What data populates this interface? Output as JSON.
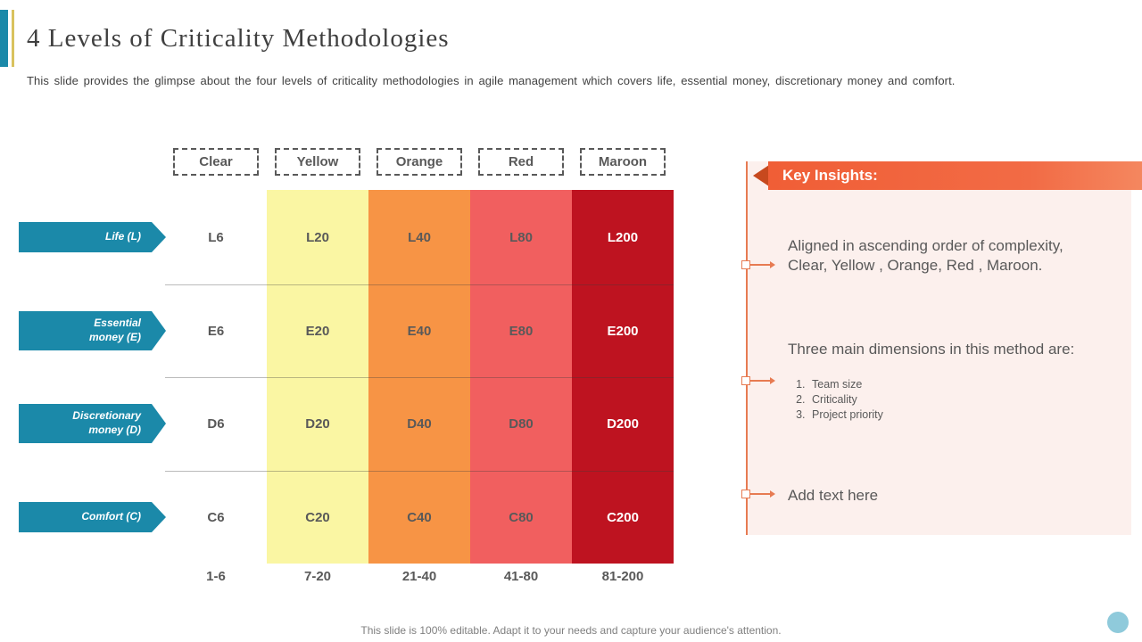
{
  "slide": {
    "title": "4 Levels of Criticality Methodologies",
    "subtitle": "This slide provides the glimpse about the four levels of criticality methodologies in agile management which covers life, essential money, discretionary money and comfort.",
    "footer": "This slide is 100% editable. Adapt it to your needs and capture your audience's attention."
  },
  "matrix": {
    "type": "table",
    "columns": [
      {
        "header": "Clear",
        "range": "1-6",
        "color": "#FFFFFF"
      },
      {
        "header": "Yellow",
        "range": "7-20",
        "color": "#FAF6A3"
      },
      {
        "header": "Orange",
        "range": "21-40",
        "color": "#F79445"
      },
      {
        "header": "Red",
        "range": "41-80",
        "color": "#F15F5F"
      },
      {
        "header": "Maroon",
        "range": "81-200",
        "color": "#BE1320"
      }
    ],
    "rows": [
      {
        "label": "Life (L)",
        "cells": [
          "L6",
          "L20",
          "L40",
          "L80",
          "L200"
        ]
      },
      {
        "label": "Essential money (E)",
        "cells": [
          "E6",
          "E20",
          "E40",
          "E80",
          "E200"
        ]
      },
      {
        "label": "Discretionary money (D)",
        "cells": [
          "D6",
          "D20",
          "D40",
          "D80",
          "D200"
        ]
      },
      {
        "label": "Comfort (C)",
        "cells": [
          "C6",
          "C20",
          "C40",
          "C80",
          "C200"
        ]
      }
    ]
  },
  "insights": {
    "title": "Key Insights:",
    "bullet1": "Aligned in ascending order of complexity, Clear, Yellow , Orange, Red , Maroon.",
    "bullet2": "Three main dimensions in this method are:",
    "bullet2_list": [
      "Team size",
      "Criticality",
      "Project priority"
    ],
    "bullet3": "Add text here"
  },
  "theme": {
    "teal": "#1B89A9",
    "ribbon_orange": "#F0603A",
    "connector_orange": "#E77B52",
    "panel_pink": "#FCF0ED",
    "text_gray": "#595959"
  }
}
